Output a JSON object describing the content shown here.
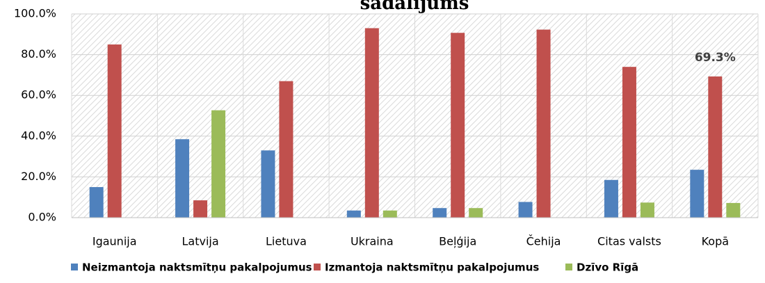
{
  "chart_data": {
    "type": "bar",
    "title": "sadalījums",
    "categories": [
      "Igaunija",
      "Latvija",
      "Lietuva",
      "Ukraina",
      "Beļģija",
      "Čehija",
      "Citas valsts",
      "Kopā"
    ],
    "series": [
      {
        "name": "Neizmantoja naktsmītņu pakalpojumus",
        "color": "#4f81bd",
        "values": [
          15,
          38.5,
          33,
          3.5,
          4.7,
          7.7,
          18.5,
          23.5
        ]
      },
      {
        "name": "Izmantoja naktsmītņu pakalpojumus",
        "color": "#c0504d",
        "values": [
          85,
          8.5,
          67,
          93,
          90.7,
          92.3,
          74,
          69.3
        ],
        "value_labels": [
          null,
          null,
          null,
          null,
          null,
          null,
          null,
          "69.3%"
        ]
      },
      {
        "name": "Dzīvo Rīgā",
        "color": "#9bbb59",
        "values": [
          0,
          52.7,
          0,
          3.5,
          4.7,
          0,
          7.4,
          7.2
        ]
      }
    ],
    "ylim": [
      0,
      100
    ],
    "yticks": [
      {
        "value": 0,
        "label": "0.0%"
      },
      {
        "value": 20,
        "label": "20.0%"
      },
      {
        "value": 40,
        "label": "40.0%"
      },
      {
        "value": 60,
        "label": "60.0%"
      },
      {
        "value": 80,
        "label": "80.0%"
      },
      {
        "value": 100,
        "label": "100.0%"
      }
    ],
    "grid": true,
    "legend": "bottom"
  }
}
